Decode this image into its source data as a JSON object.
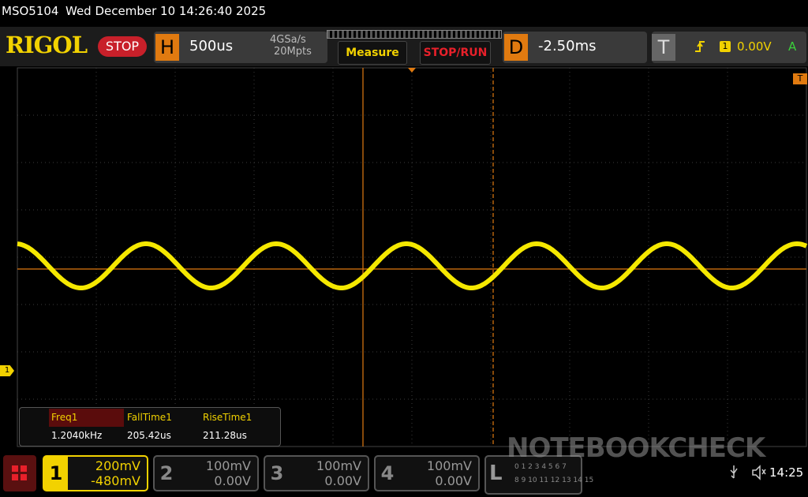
{
  "status_bar": {
    "model": "MSO5104",
    "datetime": "Wed December 10 14:26:40 2025"
  },
  "toolbar": {
    "logo": "RIGOL",
    "run_state": "STOP",
    "horizontal": {
      "label": "H",
      "timebase": "500us",
      "sample_rate": "4GSa/s",
      "memory_depth": "20Mpts"
    },
    "measure_button": "Measure",
    "stop_run_button": "STOP/RUN",
    "delay": {
      "label": "D",
      "value": "-2.50ms"
    },
    "trigger": {
      "label": "T",
      "source": "1",
      "level": "0.00V",
      "mode": "A"
    }
  },
  "display": {
    "channel_marker": "1",
    "trigger_marker": "T"
  },
  "measurements": [
    {
      "name": "Freq1",
      "value": "1.2040kHz"
    },
    {
      "name": "FallTime1",
      "value": "205.42us"
    },
    {
      "name": "RiseTime1",
      "value": "211.28us"
    }
  ],
  "channels": [
    {
      "number": "1",
      "scale": "200mV",
      "offset": "-480mV"
    },
    {
      "number": "2",
      "scale": "100mV",
      "offset": "0.00V"
    },
    {
      "number": "3",
      "scale": "100mV",
      "offset": "0.00V"
    },
    {
      "number": "4",
      "scale": "100mV",
      "offset": "0.00V"
    }
  ],
  "logic": {
    "label": "L",
    "row1": "0 1 2 3 4 5 6 7",
    "row2": "8 9 10 11 12 13 14 15"
  },
  "clock": "14:25",
  "watermark": "NOTEBOOKCHECK"
}
